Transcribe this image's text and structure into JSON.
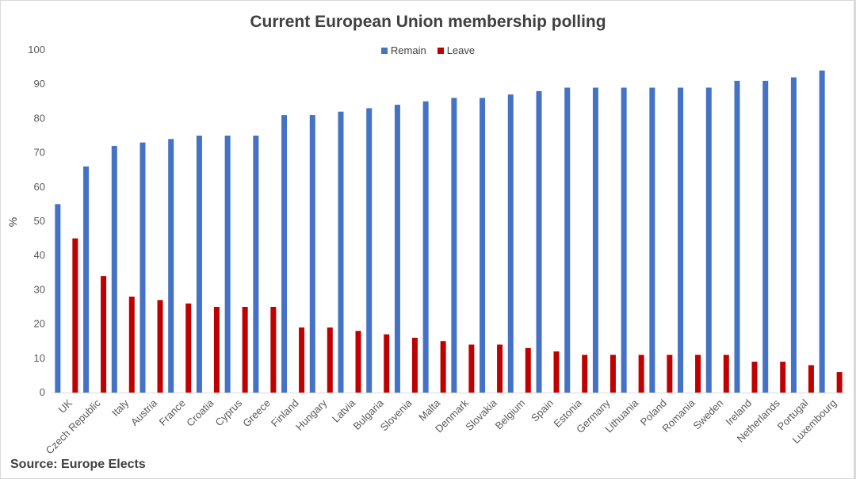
{
  "chart_data": {
    "type": "bar",
    "title": "Current European Union membership polling",
    "ylabel": "%",
    "xlabel": "",
    "ylim": [
      0,
      100
    ],
    "yticks": [
      0,
      10,
      20,
      30,
      40,
      50,
      60,
      70,
      80,
      90,
      100
    ],
    "grid": false,
    "legend_position": "top-center",
    "categories": [
      "UK",
      "Czech Republic",
      "Italy",
      "Austria",
      "France",
      "Croatia",
      "Cyprus",
      "Greece",
      "Finland",
      "Hungary",
      "Latvia",
      "Bulgaria",
      "Slovenia",
      "Malta",
      "Denmark",
      "Slovakia",
      "Belgium",
      "Spain",
      "Estonia",
      "Germany",
      "Lithuania",
      "Poland",
      "Romania",
      "Sweden",
      "Ireland",
      "Netherlands",
      "Portugal",
      "Luxembourg"
    ],
    "series": [
      {
        "name": "Remain",
        "color": "#4472c4",
        "values": [
          55,
          66,
          72,
          73,
          74,
          75,
          75,
          75,
          81,
          81,
          82,
          83,
          84,
          85,
          86,
          86,
          87,
          88,
          89,
          89,
          89,
          89,
          89,
          89,
          91,
          91,
          92,
          94
        ]
      },
      {
        "name": "Leave",
        "color": "#c00000",
        "values": [
          45,
          34,
          28,
          27,
          26,
          25,
          25,
          25,
          19,
          19,
          18,
          17,
          16,
          15,
          14,
          14,
          13,
          12,
          11,
          11,
          11,
          11,
          11,
          11,
          9,
          9,
          8,
          6
        ]
      }
    ]
  },
  "source": "Source: Europe Elects"
}
